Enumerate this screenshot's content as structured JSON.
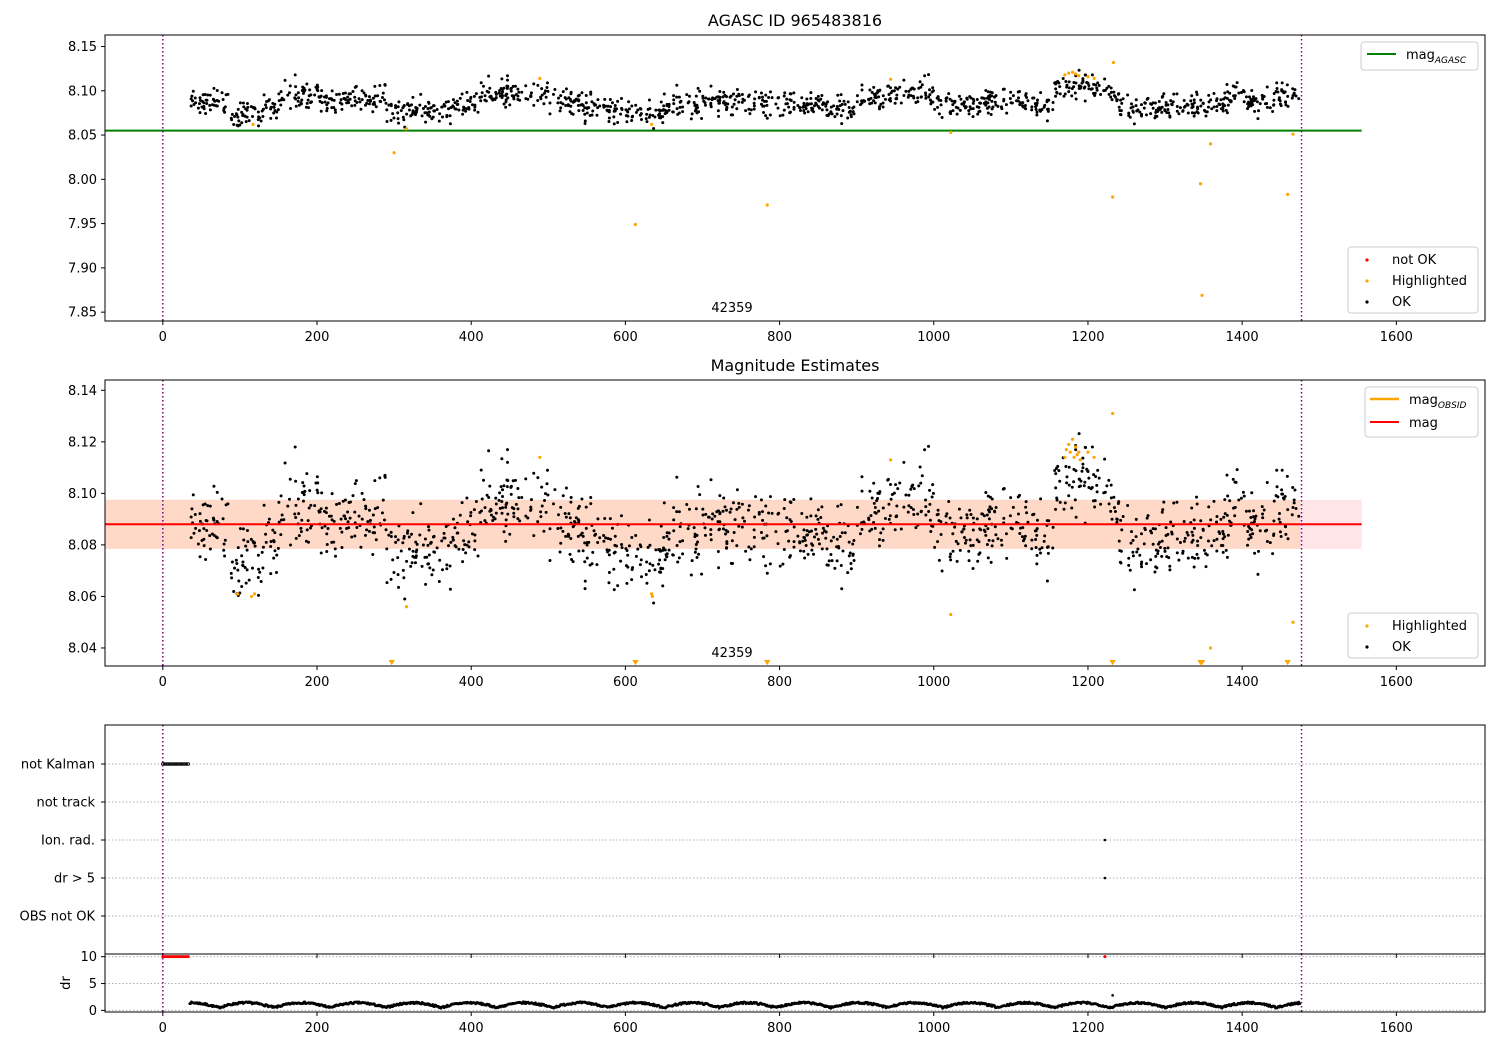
{
  "colors": {
    "ok": "#000000",
    "highlighted": "#ffa500",
    "not_ok": "#ff0000",
    "mag_agasc_line": "#008000",
    "mag_line": "#ff0000",
    "mag_obsid_legend": "#ffa500",
    "band_outer": "#ffe4e8",
    "band_inner": "#ffd9c7",
    "obsid_boundary": "#800080"
  },
  "chart_data": [
    {
      "type": "scatter",
      "title": "AGASC ID 965483816",
      "xlabel": "",
      "ylabel": "",
      "xlim": [
        -75,
        1715
      ],
      "ylim": [
        7.84,
        8.163
      ],
      "xticks": [
        "0",
        "200",
        "400",
        "600",
        "800",
        "1000",
        "1200",
        "1400",
        "1600"
      ],
      "yticks": [
        "7.85",
        "7.90",
        "7.95",
        "8.00",
        "8.05",
        "8.10",
        "8.15"
      ],
      "obsid_boundaries": [
        0,
        1477
      ],
      "obsid_label": "42359",
      "grid": false,
      "legend_upper": {
        "placement": "upper right",
        "entries": [
          {
            "name": "mag",
            "sub": "AGASC"
          }
        ]
      },
      "legend_lower": {
        "placement": "lower right",
        "entries": [
          "not OK",
          "Highlighted",
          "OK"
        ]
      },
      "hlines": [
        {
          "name": "mag_AGASC",
          "y": 8.055,
          "x": [
            -75,
            1555
          ]
        }
      ],
      "ok_series": {
        "x_range": [
          35,
          1475
        ],
        "mean": 8.088,
        "approx_count": 1300
      },
      "highlighted_points": {
        "x": [
          117,
          300,
          316,
          489,
          613,
          634,
          784,
          944,
          1022,
          1170,
          1175,
          1180,
          1184,
          1188,
          1200,
          1208,
          1232,
          1233,
          1346,
          1348,
          1359,
          1459,
          1466
        ],
        "y": [
          8.062,
          8.03,
          8.057,
          8.114,
          7.949,
          8.062,
          7.971,
          8.113,
          8.053,
          8.118,
          8.12,
          8.121,
          8.119,
          8.117,
          8.116,
          8.114,
          7.98,
          8.132,
          7.995,
          7.869,
          8.04,
          7.983,
          8.051
        ]
      },
      "not_ok_points": {
        "x": [],
        "y": []
      }
    },
    {
      "type": "scatter",
      "title": "Magnitude Estimates",
      "xlabel": "",
      "ylabel": "",
      "xlim": [
        -75,
        1715
      ],
      "ylim": [
        8.033,
        8.144
      ],
      "xticks": [
        "0",
        "200",
        "400",
        "600",
        "800",
        "1000",
        "1200",
        "1400",
        "1600"
      ],
      "yticks": [
        "8.04",
        "8.06",
        "8.08",
        "8.10",
        "8.12",
        "8.14"
      ],
      "obsid_boundaries": [
        0,
        1477
      ],
      "obsid_label": "42359",
      "grid": false,
      "legend_upper": {
        "placement": "upper right",
        "entries": [
          {
            "name": "mag",
            "sub": "OBSID"
          },
          {
            "name": "mag",
            "sub": ""
          }
        ]
      },
      "legend_lower": {
        "placement": "lower right",
        "entries": [
          "Highlighted",
          "OK"
        ]
      },
      "mag_line": {
        "y": 8.088,
        "x": [
          -75,
          1555
        ]
      },
      "band_outer": {
        "y": [
          8.0785,
          8.0975
        ],
        "x": [
          -75,
          1555
        ]
      },
      "band_inner": {
        "y": [
          8.0785,
          8.0975
        ],
        "x": [
          -75,
          1475
        ]
      },
      "highlighted_points": {
        "x": [
          97,
          115,
          119,
          316,
          489,
          634,
          635,
          944,
          1022,
          1170,
          1172,
          1175,
          1177,
          1180,
          1182,
          1184,
          1186,
          1188,
          1190,
          1200,
          1208,
          1232,
          1359,
          1466
        ],
        "y": [
          8.061,
          8.06,
          8.061,
          8.056,
          8.114,
          8.061,
          8.06,
          8.113,
          8.053,
          8.114,
          8.117,
          8.119,
          8.116,
          8.121,
          8.114,
          8.118,
          8.115,
          8.116,
          8.113,
          8.116,
          8.114,
          8.131,
          8.04,
          8.05
        ]
      },
      "below_range_markers": {
        "x": [
          297,
          613,
          784,
          1232,
          1346,
          1348,
          1459
        ]
      }
    },
    {
      "type": "scatter",
      "title": "",
      "xlabel": "",
      "ylabel": "",
      "xlim": [
        -75,
        1715
      ],
      "flag_rows": [
        "not Kalman",
        "not track",
        "Ion. rad.",
        "dr > 5",
        "OBS not OK"
      ],
      "obsid_boundaries": [
        0,
        1477
      ],
      "flag_points": [
        {
          "row": "not Kalman",
          "x_range": [
            0,
            33
          ]
        },
        {
          "row": "Ion. rad.",
          "x": [
            1222
          ]
        },
        {
          "row": "dr > 5",
          "x": [
            1222
          ]
        }
      ]
    },
    {
      "type": "scatter",
      "title": "",
      "xlabel": "",
      "ylabel": "dr",
      "xlim": [
        -75,
        1715
      ],
      "ylim": [
        -0.3,
        10.5
      ],
      "xticks": [
        "0",
        "200",
        "400",
        "600",
        "800",
        "1000",
        "1200",
        "1400",
        "1600"
      ],
      "yticks": [
        "0",
        "5",
        "10"
      ],
      "obsid_boundaries": [
        0,
        1477
      ],
      "grid": "y-dotted",
      "not_ok_points": {
        "x_range": [
          0,
          33
        ],
        "y": 10,
        "extra_x": [
          1222
        ]
      },
      "ok_series": {
        "x_range": [
          35,
          1475
        ],
        "y_range": [
          0,
          2
        ]
      },
      "outlier": {
        "x": 1232,
        "y": 2.8
      }
    }
  ]
}
